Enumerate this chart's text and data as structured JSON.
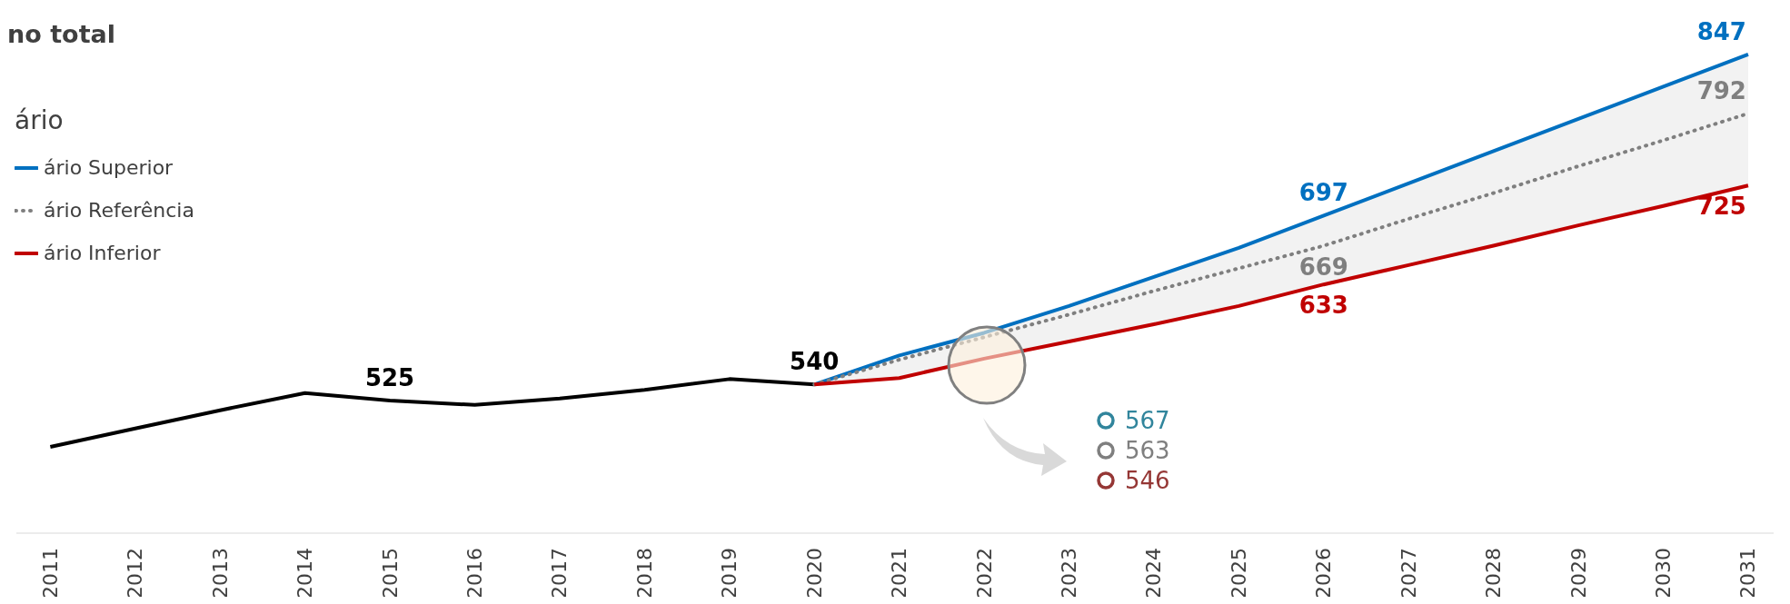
{
  "chart_data": {
    "type": "line",
    "title": "no total",
    "legend_title": "ário",
    "legend": "top left",
    "tick_labels": "x",
    "categories": [
      "2011",
      "2012",
      "2013",
      "2014",
      "2015",
      "2016",
      "2017",
      "2018",
      "2019",
      "2020",
      "2021",
      "2022",
      "2023",
      "2024",
      "2025",
      "2026",
      "2027",
      "2028",
      "2029",
      "2030",
      "2031"
    ],
    "series": [
      {
        "color": "#000000",
        "values": [
          482,
          499,
          516,
          532,
          525,
          521,
          527,
          535,
          545,
          540,
          null,
          null,
          null,
          null,
          null,
          null,
          null,
          null,
          null,
          null,
          null
        ],
        "value_labels": [
          null,
          null,
          null,
          null,
          "525",
          null,
          null,
          null,
          null,
          "540",
          null,
          null,
          null,
          null,
          null,
          null,
          null,
          null,
          null,
          null,
          null
        ]
      },
      {
        "name": "ário Superior",
        "color": "#0070c0",
        "values": [
          null,
          null,
          null,
          null,
          null,
          null,
          null,
          null,
          null,
          540,
          567,
          588,
          613,
          640,
          667,
          697,
          727,
          757,
          787,
          817,
          847
        ],
        "value_labels": [
          null,
          null,
          null,
          null,
          null,
          null,
          null,
          null,
          null,
          null,
          null,
          null,
          null,
          null,
          null,
          "697",
          null,
          null,
          null,
          null,
          "847"
        ]
      },
      {
        "name": "ário Referência",
        "color": "#7f7f7f",
        "line_style": "dotted",
        "values": [
          null,
          null,
          null,
          null,
          null,
          null,
          null,
          null,
          null,
          540,
          563,
          584,
          605,
          627,
          648,
          669,
          694,
          718,
          743,
          767,
          792
        ],
        "value_labels": [
          null,
          null,
          null,
          null,
          null,
          null,
          null,
          null,
          null,
          null,
          null,
          null,
          null,
          null,
          null,
          "669",
          null,
          null,
          null,
          null,
          "792"
        ],
        "lower": [
          null,
          null,
          null,
          null,
          null,
          null,
          null,
          null,
          null,
          540,
          546,
          564,
          580,
          596,
          613,
          633,
          651,
          669,
          688,
          706,
          725
        ],
        "upper": [
          null,
          null,
          null,
          null,
          null,
          null,
          null,
          null,
          null,
          540,
          567,
          588,
          613,
          640,
          667,
          697,
          727,
          757,
          787,
          817,
          847
        ]
      },
      {
        "name": "ário Inferior",
        "color": "#c00000",
        "values": [
          null,
          null,
          null,
          null,
          null,
          null,
          null,
          null,
          null,
          540,
          546,
          564,
          580,
          596,
          613,
          633,
          651,
          669,
          688,
          706,
          725
        ],
        "value_labels": [
          null,
          null,
          null,
          null,
          null,
          null,
          null,
          null,
          null,
          null,
          null,
          null,
          null,
          null,
          null,
          "633",
          null,
          null,
          null,
          null,
          "725"
        ]
      }
    ],
    "annotations": [
      "567",
      "563",
      "546"
    ]
  }
}
